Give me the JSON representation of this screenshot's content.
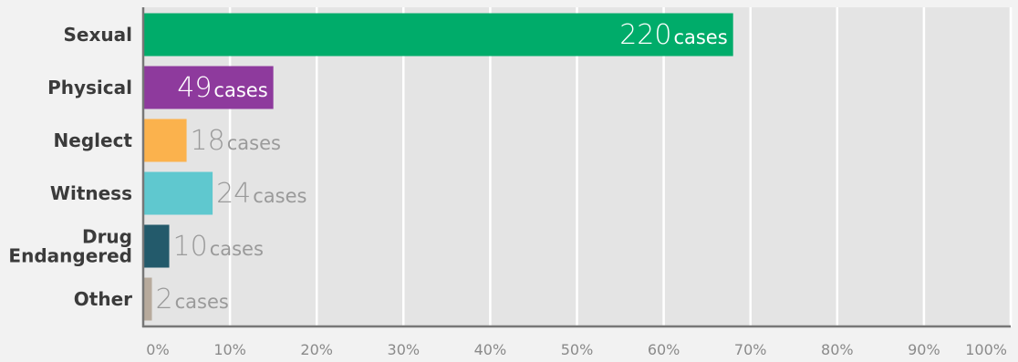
{
  "chart_data": {
    "type": "bar",
    "orientation": "horizontal",
    "title": "",
    "xlabel": "",
    "ylabel": "",
    "xlim": [
      0,
      100
    ],
    "xticks": [
      "0%",
      "10%",
      "20%",
      "30%",
      "40%",
      "50%",
      "60%",
      "70%",
      "80%",
      "90%",
      "100%"
    ],
    "categories": [
      {
        "label_lines": [
          "Sexual"
        ],
        "percent": 68,
        "count": "220",
        "unit": "cases",
        "color": "#00ac6a",
        "label_inside": true
      },
      {
        "label_lines": [
          "Physical"
        ],
        "percent": 15,
        "count": "49",
        "unit": "cases",
        "color": "#8e3a9d",
        "label_inside": true
      },
      {
        "label_lines": [
          "Neglect"
        ],
        "percent": 5,
        "count": "18",
        "unit": "cases",
        "color": "#fbb24d",
        "label_inside": false
      },
      {
        "label_lines": [
          "Witness"
        ],
        "percent": 8,
        "count": "24",
        "unit": "cases",
        "color": "#5fc8cf",
        "label_inside": false
      },
      {
        "label_lines": [
          "Drug",
          "Endangered"
        ],
        "percent": 3,
        "count": "10",
        "unit": "cases",
        "color": "#235a6b",
        "label_inside": false
      },
      {
        "label_lines": [
          "Other"
        ],
        "percent": 1,
        "count": "2",
        "unit": "cases",
        "color": "#b7aa9c",
        "label_inside": false
      }
    ],
    "grid": true,
    "legend": "none",
    "colors": {
      "panel": "#e4e4e4",
      "grid": "#ffffff",
      "axis": "#777777",
      "category_text": "#3b3b3b",
      "tick_text": "#8a8a8a",
      "outside_value_text": "#9a9a9a",
      "inside_value_text": "#ffffff"
    }
  }
}
